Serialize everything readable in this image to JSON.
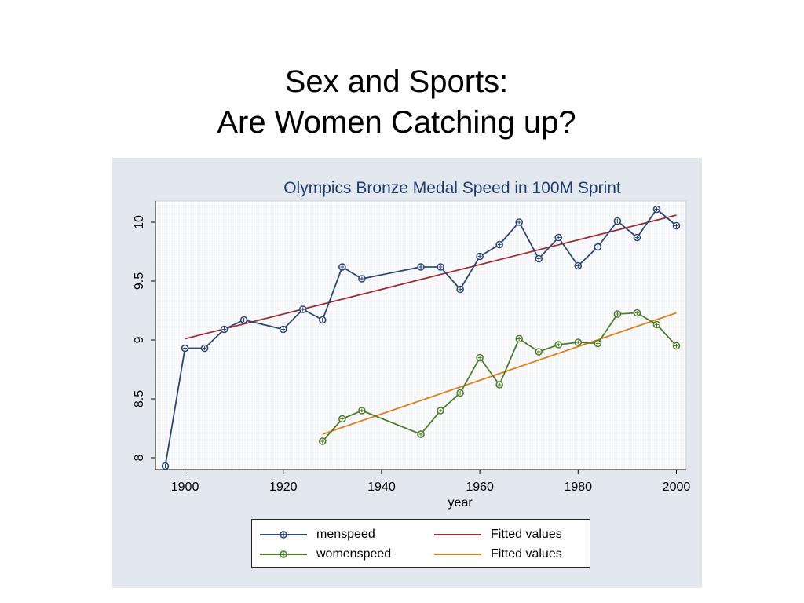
{
  "slide": {
    "title_line1": "Sex and Sports:",
    "title_line2": "Are Women Catching up?"
  },
  "colors": {
    "panel_bg": "#e3e8ef",
    "plot_bg": "#ffffff",
    "menspeed": "#2e4775",
    "womenspeed": "#4f7d2a",
    "men_fit": "#9b2f35",
    "women_fit": "#e07d1b",
    "title": "#1f3a6e"
  },
  "chart_data": {
    "type": "line",
    "title": "Olympics Bronze Medal Speed in 100M Sprint",
    "xlabel": "year",
    "ylabel": "",
    "xlim": [
      1894,
      2002
    ],
    "ylim": [
      7.9,
      10.18
    ],
    "xticks": [
      1900,
      1920,
      1940,
      1960,
      1980,
      2000
    ],
    "yticks": [
      8,
      8.5,
      9,
      9.5,
      10
    ],
    "ytick_labels": [
      "8",
      "8.5",
      "9",
      "9.5",
      "10"
    ],
    "grid": true,
    "legend_position": "bottom",
    "series": [
      {
        "name": "menspeed",
        "kind": "line-marker",
        "x": [
          1896,
          1900,
          1904,
          1908,
          1912,
          1920,
          1924,
          1928,
          1932,
          1936,
          1948,
          1952,
          1956,
          1960,
          1964,
          1968,
          1972,
          1976,
          1980,
          1984,
          1988,
          1992,
          1996,
          2000
        ],
        "y": [
          7.93,
          8.93,
          8.93,
          9.09,
          9.17,
          9.09,
          9.26,
          9.17,
          9.62,
          9.52,
          9.62,
          9.62,
          9.43,
          9.71,
          9.81,
          10.0,
          9.69,
          9.87,
          9.63,
          9.79,
          10.01,
          9.87,
          10.11,
          9.97
        ]
      },
      {
        "name": "Fitted values",
        "kind": "line",
        "x": [
          1900,
          2000
        ],
        "y": [
          9.01,
          10.06
        ]
      },
      {
        "name": "womenspeed",
        "kind": "line-marker",
        "x": [
          1928,
          1932,
          1936,
          1948,
          1952,
          1956,
          1960,
          1964,
          1968,
          1972,
          1976,
          1980,
          1984,
          1988,
          1992,
          1996,
          2000
        ],
        "y": [
          8.14,
          8.33,
          8.4,
          8.2,
          8.4,
          8.55,
          8.85,
          8.62,
          9.01,
          8.9,
          8.96,
          8.98,
          8.97,
          9.22,
          9.23,
          9.13,
          8.95
        ]
      },
      {
        "name": "Fitted values",
        "kind": "line",
        "x": [
          1928,
          2000
        ],
        "y": [
          8.2,
          9.23
        ]
      }
    ]
  }
}
